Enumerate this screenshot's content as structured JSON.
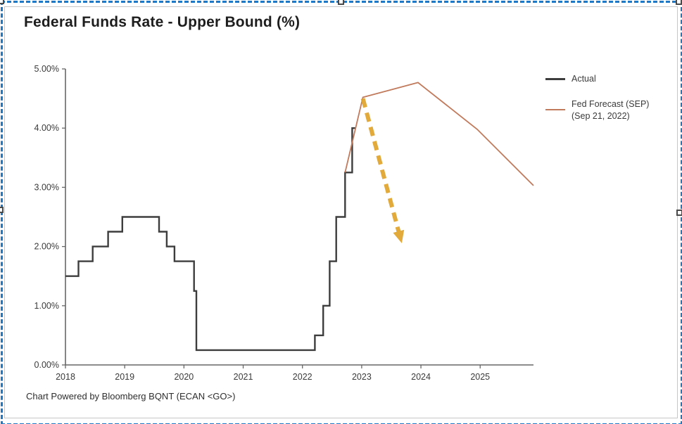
{
  "header": {
    "title": "Federal Funds Rate - Upper Bound (%)"
  },
  "footer": {
    "text": "Chart Powered by Bloomberg BQNT (ECAN <GO>)"
  },
  "legend": {
    "items": [
      {
        "label": "Actual",
        "color": "#3d3d3d"
      },
      {
        "label": "Fed Forecast (SEP)",
        "sublabel": "(Sep 21, 2022)",
        "color": "#c17a5b"
      }
    ]
  },
  "selection": {
    "border_color": "#1d78c8",
    "handle_count": 5
  },
  "chart_data": {
    "type": "line",
    "title": "Federal Funds Rate - Upper Bound (%)",
    "xlabel": "",
    "ylabel": "",
    "xlim": [
      2018,
      2025.9
    ],
    "ylim": [
      0,
      5
    ],
    "grid": false,
    "legend_position": "right",
    "x_ticks": [
      {
        "value": 2018,
        "label": "2018"
      },
      {
        "value": 2019,
        "label": "2019"
      },
      {
        "value": 2020,
        "label": "2020"
      },
      {
        "value": 2021,
        "label": "2021"
      },
      {
        "value": 2022,
        "label": "2022"
      },
      {
        "value": 2023,
        "label": "2023"
      },
      {
        "value": 2024,
        "label": "2024"
      },
      {
        "value": 2025,
        "label": "2025"
      }
    ],
    "y_ticks": [
      {
        "value": 0,
        "label": "0.00%"
      },
      {
        "value": 1,
        "label": "1.00%"
      },
      {
        "value": 2,
        "label": "2.00%"
      },
      {
        "value": 3,
        "label": "3.00%"
      },
      {
        "value": 4,
        "label": "4.00%"
      },
      {
        "value": 5,
        "label": "5.00%"
      }
    ],
    "series": [
      {
        "name": "Actual",
        "style": "step",
        "color": "#3d3d3d",
        "width": 2.4,
        "points": [
          [
            2018.0,
            1.5
          ],
          [
            2018.22,
            1.75
          ],
          [
            2018.46,
            2.0
          ],
          [
            2018.72,
            2.25
          ],
          [
            2018.96,
            2.5
          ],
          [
            2019.58,
            2.25
          ],
          [
            2019.71,
            2.0
          ],
          [
            2019.84,
            1.75
          ],
          [
            2020.17,
            1.25
          ],
          [
            2020.21,
            0.25
          ],
          [
            2022.21,
            0.5
          ],
          [
            2022.35,
            1.0
          ],
          [
            2022.46,
            1.75
          ],
          [
            2022.57,
            2.5
          ],
          [
            2022.72,
            3.25
          ],
          [
            2022.84,
            4.0
          ],
          [
            2022.9,
            4.0
          ]
        ]
      },
      {
        "name": "Fed Forecast (SEP) (Sep 21, 2022)",
        "style": "line",
        "color": "#c17a5b",
        "width": 1.8,
        "points": [
          [
            2022.72,
            3.25
          ],
          [
            2023.02,
            4.52
          ],
          [
            2023.95,
            4.77
          ],
          [
            2024.95,
            3.98
          ],
          [
            2025.9,
            3.03
          ]
        ]
      }
    ],
    "annotations": [
      {
        "type": "arrow",
        "style": "dashed",
        "color": "#dfa32b",
        "width": 6,
        "from": [
          2023.02,
          4.5
        ],
        "to": [
          2023.66,
          2.12
        ]
      }
    ]
  }
}
